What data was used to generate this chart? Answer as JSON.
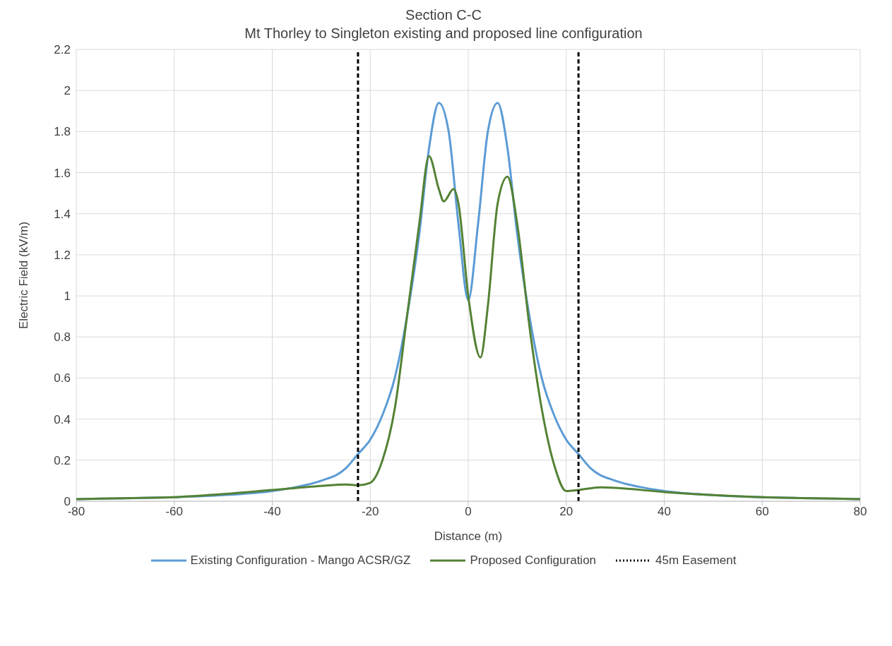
{
  "chart_data": {
    "type": "line",
    "title": "Section C-C",
    "subtitle": "Mt Thorley to Singleton existing and proposed line configuration",
    "xlabel": "Distance (m)",
    "ylabel": "Electric Field (kV/m)",
    "xlim": [
      -80,
      80
    ],
    "xticks": [
      -80,
      -60,
      -40,
      -20,
      0,
      20,
      40,
      60,
      80
    ],
    "ylim": [
      0,
      2.2
    ],
    "yticks": [
      0,
      0.2,
      0.4,
      0.6,
      0.8,
      1,
      1.2,
      1.4,
      1.6,
      1.8,
      2,
      2.2
    ],
    "grid": true,
    "legend": "bottom",
    "marker": "none",
    "line_style": "solid",
    "series": [
      {
        "name": "Existing Configuration - Mango ACSR/GZ",
        "color": "#5b9bd5",
        "x": [
          -80,
          -70,
          -60,
          -50,
          -40,
          -35,
          -30,
          -25,
          -22.5,
          -20,
          -17.5,
          -15,
          -12.5,
          -10,
          -8,
          -6,
          -4,
          -2,
          0,
          2,
          4,
          6,
          8,
          10,
          12.5,
          15,
          17.5,
          20,
          22.5,
          25,
          30,
          35,
          40,
          50,
          60,
          70,
          80
        ],
        "values": [
          0.01,
          0.015,
          0.02,
          0.03,
          0.05,
          0.07,
          0.1,
          0.16,
          0.23,
          0.3,
          0.42,
          0.6,
          0.9,
          1.3,
          1.72,
          1.94,
          1.8,
          1.35,
          0.98,
          1.35,
          1.8,
          1.94,
          1.72,
          1.3,
          0.9,
          0.6,
          0.42,
          0.3,
          0.23,
          0.16,
          0.1,
          0.07,
          0.05,
          0.03,
          0.02,
          0.015,
          0.01
        ]
      },
      {
        "name": "Proposed Configuration",
        "color": "#548235",
        "x": [
          -80,
          -70,
          -60,
          -50,
          -40,
          -30,
          -25,
          -22.5,
          -20,
          -17.5,
          -15,
          -12.5,
          -10,
          -8,
          -6,
          -5,
          -3,
          -2,
          0,
          2.5,
          4,
          6,
          8,
          10,
          12.5,
          15,
          17.5,
          20,
          22.5,
          27,
          30,
          40,
          50,
          60,
          70,
          80
        ],
        "values": [
          0.01,
          0.015,
          0.02,
          0.035,
          0.055,
          0.075,
          0.082,
          0.078,
          0.09,
          0.2,
          0.45,
          0.9,
          1.35,
          1.68,
          1.52,
          1.46,
          1.52,
          1.45,
          1.0,
          0.7,
          0.95,
          1.45,
          1.58,
          1.35,
          0.85,
          0.45,
          0.18,
          0.05,
          0.055,
          0.068,
          0.065,
          0.045,
          0.03,
          0.02,
          0.015,
          0.01
        ]
      }
    ],
    "ref_lines": [
      {
        "axis": "x",
        "value": -22.5,
        "label": "45m Easement",
        "color": "#000000",
        "line_style": "dashed"
      },
      {
        "axis": "x",
        "value": 22.5,
        "color": "#000000",
        "line_style": "dashed"
      }
    ]
  }
}
